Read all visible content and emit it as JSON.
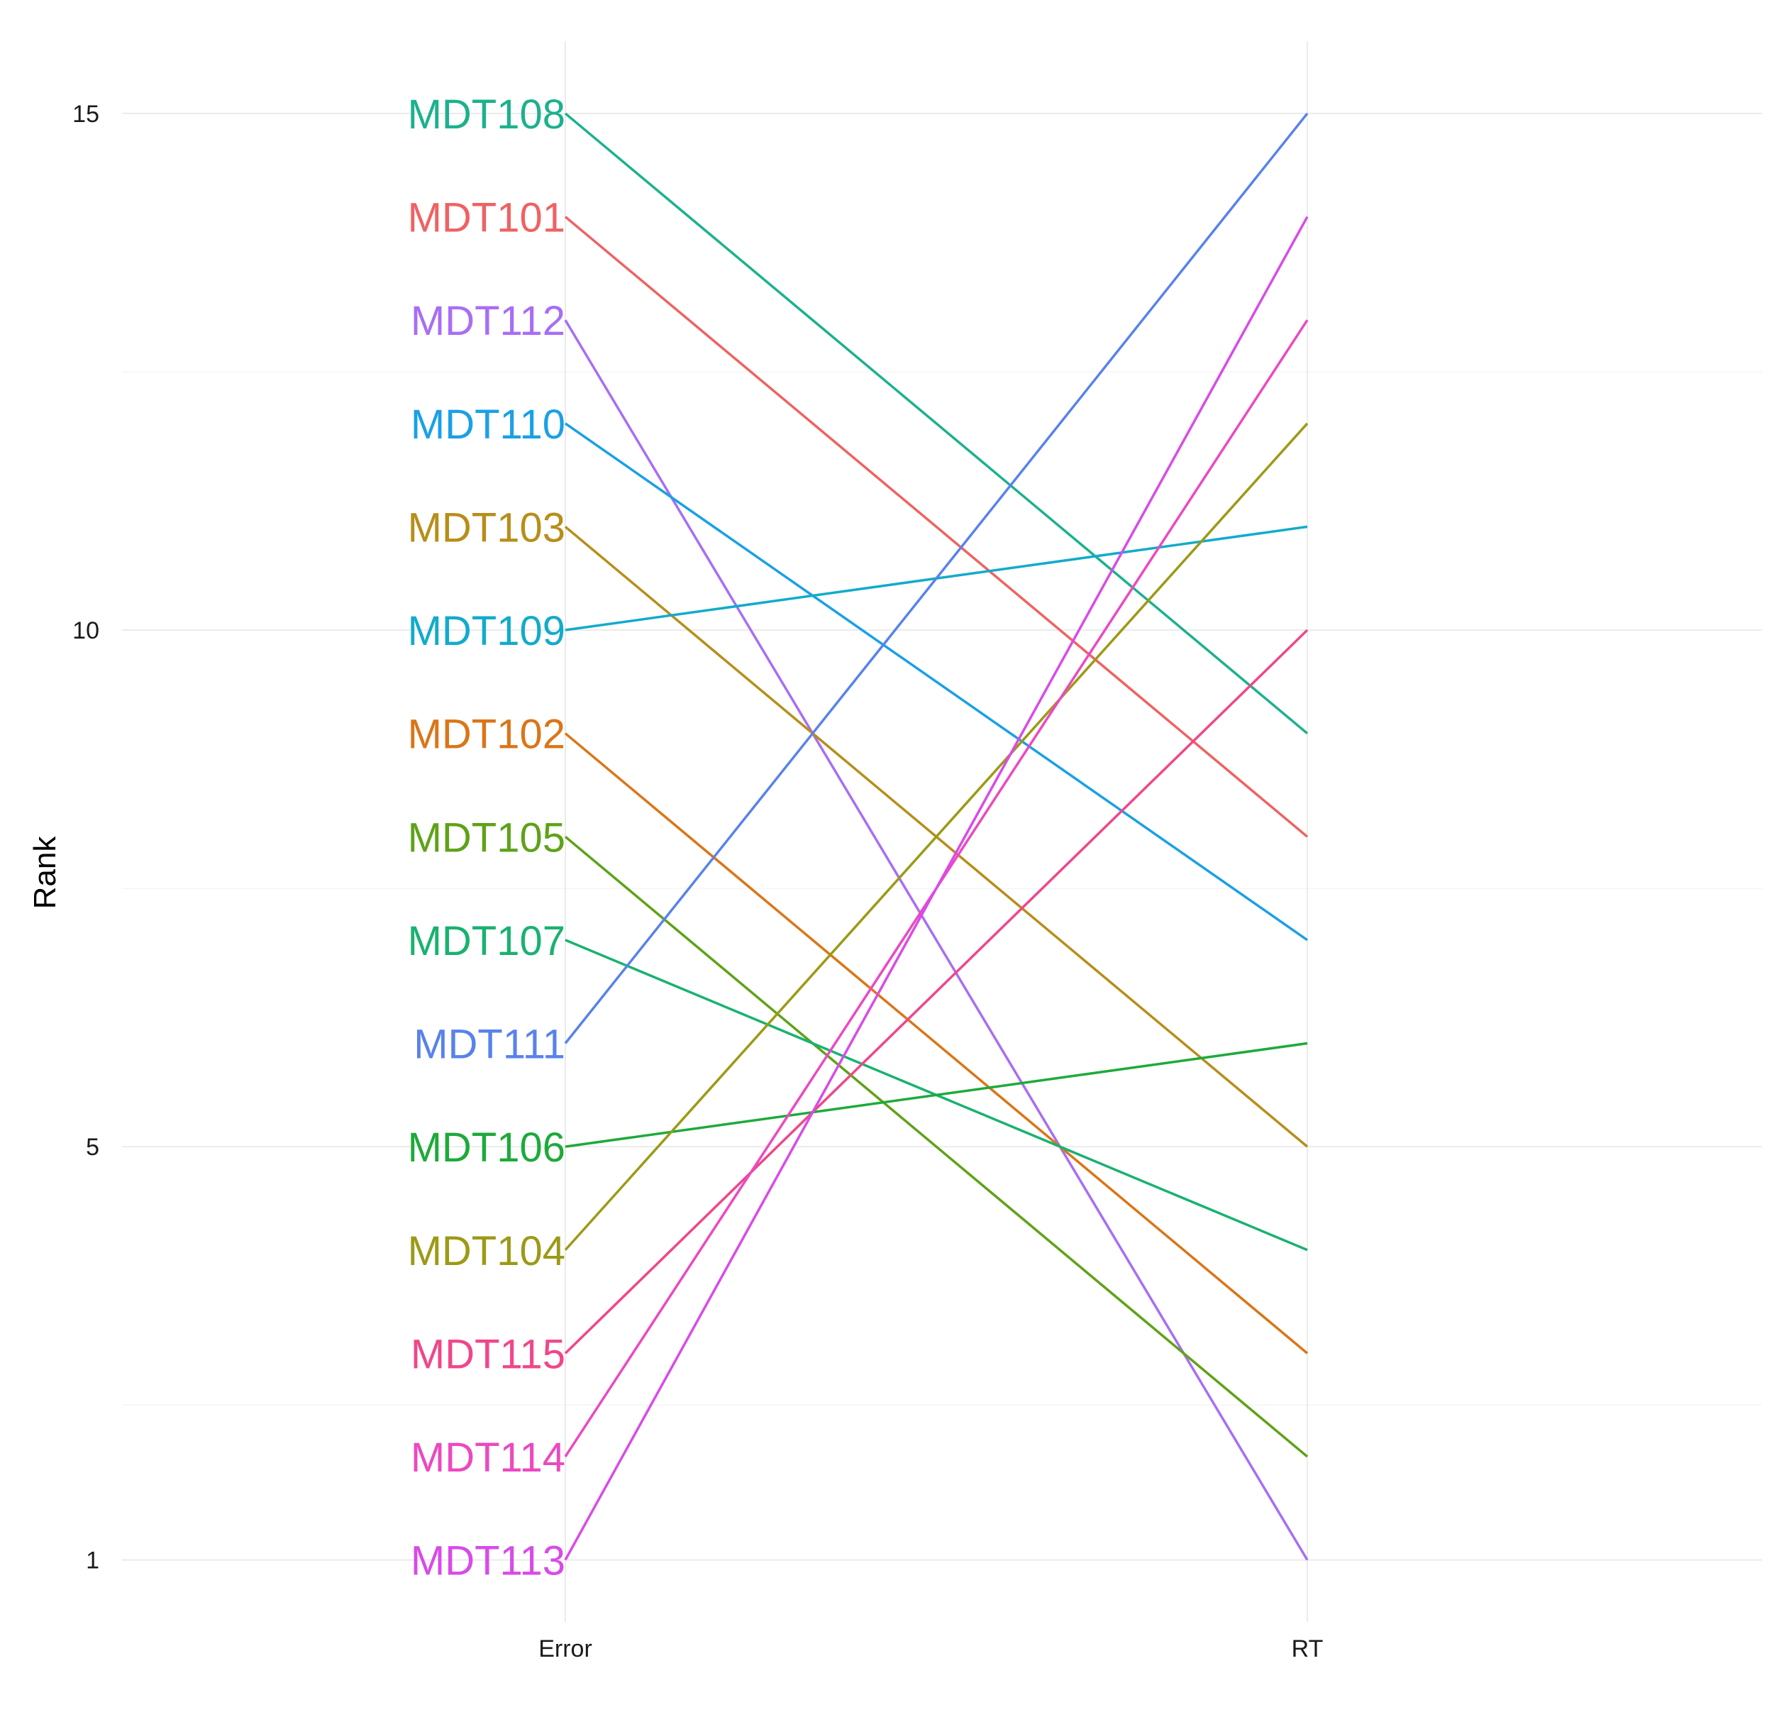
{
  "chart_data": {
    "type": "line",
    "subtype": "bump",
    "categories": [
      "Error",
      "RT"
    ],
    "ylabel": "Rank",
    "xlabel": "",
    "ylim": [
      0.4,
      15.7
    ],
    "yticks": [
      1,
      5,
      10,
      15
    ],
    "yminor": [
      2.5,
      7.5,
      12.5
    ],
    "grid": true,
    "legend": "none",
    "series": [
      {
        "name": "MDT108",
        "color": "#1CB18D",
        "values": [
          15,
          9
        ]
      },
      {
        "name": "MDT101",
        "color": "#EF6262",
        "values": [
          14,
          8
        ]
      },
      {
        "name": "MDT112",
        "color": "#A86EF5",
        "values": [
          13,
          1
        ]
      },
      {
        "name": "MDT110",
        "color": "#1AA0E6",
        "values": [
          12,
          7
        ]
      },
      {
        "name": "MDT103",
        "color": "#B78E1A",
        "values": [
          11,
          5
        ]
      },
      {
        "name": "MDT109",
        "color": "#12ABCB",
        "values": [
          10,
          11
        ]
      },
      {
        "name": "MDT102",
        "color": "#DB7518",
        "values": [
          9,
          3
        ]
      },
      {
        "name": "MDT105",
        "color": "#5FA218",
        "values": [
          8,
          2
        ]
      },
      {
        "name": "MDT107",
        "color": "#19B270",
        "values": [
          7,
          4
        ]
      },
      {
        "name": "MDT111",
        "color": "#5882EC",
        "values": [
          6,
          15
        ]
      },
      {
        "name": "MDT106",
        "color": "#1DAA3A",
        "values": [
          5,
          6
        ]
      },
      {
        "name": "MDT104",
        "color": "#9C9A16",
        "values": [
          4,
          12
        ]
      },
      {
        "name": "MDT115",
        "color": "#F0468A",
        "values": [
          3,
          10
        ]
      },
      {
        "name": "MDT114",
        "color": "#EC49C0",
        "values": [
          2,
          13
        ]
      },
      {
        "name": "MDT113",
        "color": "#D84BE8",
        "values": [
          1,
          14
        ]
      }
    ]
  }
}
